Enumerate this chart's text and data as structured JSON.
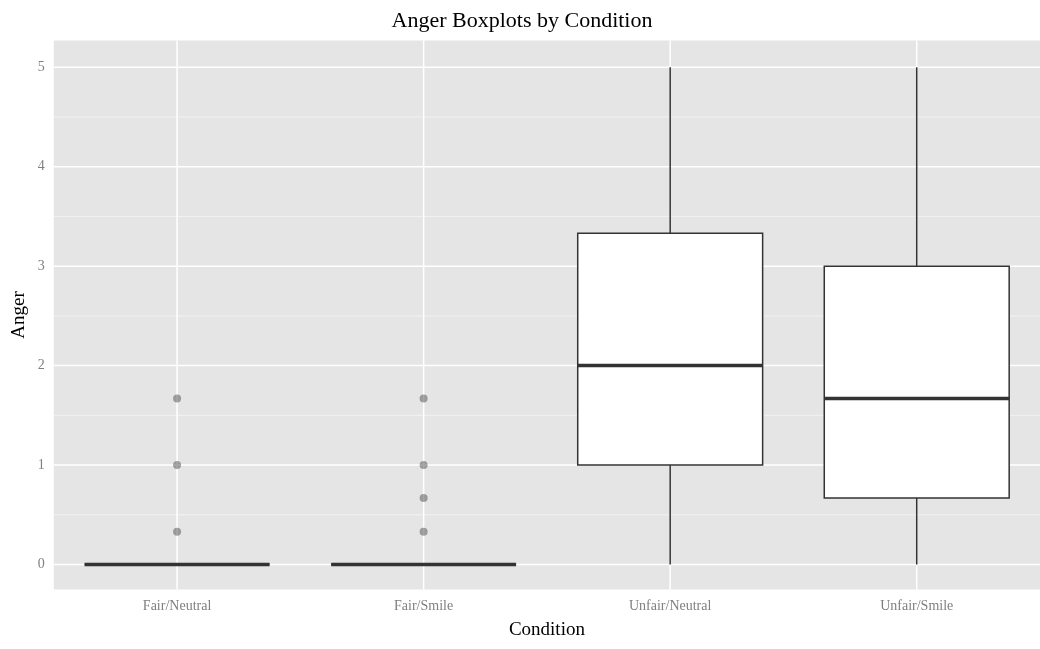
{
  "chart_data": {
    "type": "box",
    "title": "Anger Boxplots by Condition",
    "xlabel": "Condition",
    "ylabel": "Anger",
    "categories": [
      "Fair/Neutral",
      "Fair/Smile",
      "Unfair/Neutral",
      "Unfair/Smile"
    ],
    "boxes": [
      {
        "low": 0,
        "q1": 0,
        "median": 0,
        "q3": 0,
        "high": 0,
        "outliers": [
          0.33,
          1,
          1.67
        ]
      },
      {
        "low": 0,
        "q1": 0,
        "median": 0,
        "q3": 0,
        "high": 0,
        "outliers": [
          0.33,
          0.67,
          1,
          1.67
        ]
      },
      {
        "low": 0,
        "q1": 1,
        "median": 2,
        "q3": 3.33,
        "high": 5
      },
      {
        "low": 0,
        "q1": 0.67,
        "median": 1.67,
        "q3": 3,
        "high": 5
      }
    ],
    "ylim": [
      -0.25,
      5.27
    ],
    "yticks": [
      0,
      1,
      2,
      3,
      4,
      5
    ],
    "grid": true,
    "legend": false
  }
}
